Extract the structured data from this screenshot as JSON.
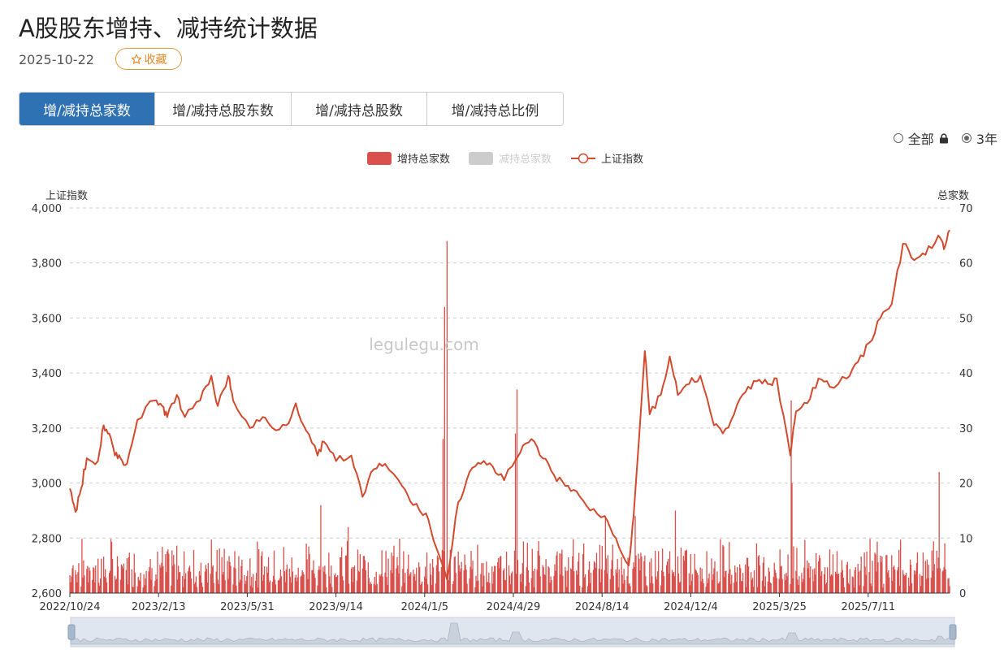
{
  "header": {
    "title": "A股股东增持、减持统计数据",
    "date": "2025-10-22",
    "favorite_label": "收藏"
  },
  "tabs": [
    {
      "label": "增/减持总家数",
      "active": true
    },
    {
      "label": "增/减持总股东数",
      "active": false
    },
    {
      "label": "增/减持总股数",
      "active": false
    },
    {
      "label": "增/减持总比例",
      "active": false
    }
  ],
  "range": {
    "all_label": "全部",
    "three_year_label": "3年",
    "selected": "3年"
  },
  "watermark": "legulegu.com",
  "colors": {
    "increase": "#d9504c",
    "decrease": "#cccccc",
    "index": "#d24a2e",
    "tab_active": "#2f72b4"
  },
  "chart_data": {
    "type": "bar+line",
    "legend": [
      {
        "name": "增持总家数",
        "color": "#d9504c",
        "enabled": true
      },
      {
        "name": "减持总家数",
        "color": "#cccccc",
        "enabled": false
      },
      {
        "name": "上证指数",
        "color": "#d24a2e",
        "enabled": true
      }
    ],
    "legend_position": "top-center",
    "left_axis": {
      "title": "上证指数",
      "range": [
        2600,
        4000
      ],
      "ticks": [
        "2,600",
        "2,800",
        "3,000",
        "3,200",
        "3,400",
        "3,600",
        "3,800",
        "4,000"
      ]
    },
    "right_axis": {
      "title": "总家数",
      "range": [
        0,
        70
      ],
      "ticks": [
        "0",
        "10",
        "20",
        "30",
        "40",
        "50",
        "60",
        "70"
      ]
    },
    "x_range": [
      "2022-10-24",
      "2025-10-22"
    ],
    "x_ticks": [
      "2022/10/24",
      "2023/2/13",
      "2023/5/31",
      "2023/9/14",
      "2024/1/5",
      "2024/4/29",
      "2024/8/14",
      "2024/12/4",
      "2025/3/25",
      "2025/7/11"
    ],
    "grid": "horizontal-dashed",
    "index_series": {
      "name": "上证指数",
      "points": [
        [
          "2022-10-24",
          2980
        ],
        [
          "2022-10-31",
          2895
        ],
        [
          "2022-11-07",
          2980
        ],
        [
          "2022-11-14",
          3090
        ],
        [
          "2022-11-28",
          3080
        ],
        [
          "2022-12-05",
          3210
        ],
        [
          "2022-12-12",
          3180
        ],
        [
          "2022-12-19",
          3100
        ],
        [
          "2022-12-26",
          3090
        ],
        [
          "2023-01-03",
          3070
        ],
        [
          "2023-01-16",
          3230
        ],
        [
          "2023-02-06",
          3300
        ],
        [
          "2023-02-16",
          3280
        ],
        [
          "2023-02-22",
          3240
        ],
        [
          "2023-03-06",
          3320
        ],
        [
          "2023-03-16",
          3240
        ],
        [
          "2023-04-04",
          3300
        ],
        [
          "2023-04-18",
          3390
        ],
        [
          "2023-04-26",
          3280
        ],
        [
          "2023-05-09",
          3390
        ],
        [
          "2023-05-15",
          3300
        ],
        [
          "2023-06-05",
          3200
        ],
        [
          "2023-06-21",
          3240
        ],
        [
          "2023-07-03",
          3200
        ],
        [
          "2023-07-20",
          3210
        ],
        [
          "2023-08-01",
          3290
        ],
        [
          "2023-08-14",
          3190
        ],
        [
          "2023-08-28",
          3100
        ],
        [
          "2023-09-05",
          3150
        ],
        [
          "2023-09-20",
          3080
        ],
        [
          "2023-10-09",
          3100
        ],
        [
          "2023-10-23",
          2950
        ],
        [
          "2023-11-06",
          3050
        ],
        [
          "2023-11-20",
          3070
        ],
        [
          "2023-12-11",
          2990
        ],
        [
          "2023-12-25",
          2920
        ],
        [
          "2024-01-10",
          2890
        ],
        [
          "2024-01-22",
          2770
        ],
        [
          "2024-02-05",
          2650
        ],
        [
          "2024-02-19",
          2930
        ],
        [
          "2024-03-04",
          3040
        ],
        [
          "2024-03-18",
          3070
        ],
        [
          "2024-04-02",
          3060
        ],
        [
          "2024-04-16",
          3010
        ],
        [
          "2024-05-06",
          3110
        ],
        [
          "2024-05-20",
          3160
        ],
        [
          "2024-06-03",
          3090
        ],
        [
          "2024-06-17",
          3030
        ],
        [
          "2024-07-01",
          2990
        ],
        [
          "2024-07-15",
          2970
        ],
        [
          "2024-08-01",
          2900
        ],
        [
          "2024-08-19",
          2880
        ],
        [
          "2024-09-02",
          2800
        ],
        [
          "2024-09-18",
          2700
        ],
        [
          "2024-09-24",
          2880
        ],
        [
          "2024-10-08",
          3480
        ],
        [
          "2024-10-14",
          3250
        ],
        [
          "2024-10-28",
          3320
        ],
        [
          "2024-11-08",
          3460
        ],
        [
          "2024-11-18",
          3320
        ],
        [
          "2024-12-02",
          3360
        ],
        [
          "2024-12-16",
          3390
        ],
        [
          "2025-01-02",
          3210
        ],
        [
          "2025-01-13",
          3180
        ],
        [
          "2025-01-27",
          3250
        ],
        [
          "2025-02-10",
          3330
        ],
        [
          "2025-02-24",
          3370
        ],
        [
          "2025-03-10",
          3360
        ],
        [
          "2025-03-21",
          3380
        ],
        [
          "2025-04-07",
          3100
        ],
        [
          "2025-04-14",
          3260
        ],
        [
          "2025-04-28",
          3290
        ],
        [
          "2025-05-12",
          3380
        ],
        [
          "2025-05-26",
          3350
        ],
        [
          "2025-06-16",
          3380
        ],
        [
          "2025-06-30",
          3440
        ],
        [
          "2025-07-14",
          3510
        ],
        [
          "2025-07-28",
          3600
        ],
        [
          "2025-08-11",
          3650
        ],
        [
          "2025-08-25",
          3870
        ],
        [
          "2025-09-08",
          3810
        ],
        [
          "2025-09-22",
          3830
        ],
        [
          "2025-10-08",
          3900
        ],
        [
          "2025-10-15",
          3850
        ],
        [
          "2025-10-22",
          3920
        ]
      ]
    },
    "increase_series": {
      "name": "增持总家数",
      "note": "daily bars, mostly 0-10; notable peaks",
      "peaks": [
        [
          "2024-02-05",
          64
        ],
        [
          "2024-02-02",
          52
        ],
        [
          "2024-01-31",
          28
        ],
        [
          "2024-05-02",
          37
        ],
        [
          "2024-04-30",
          29
        ],
        [
          "2025-04-08",
          35
        ],
        [
          "2025-04-09",
          20
        ],
        [
          "2025-10-09",
          22
        ],
        [
          "2023-09-01",
          16
        ],
        [
          "2024-09-26",
          14
        ],
        [
          "2024-11-15",
          15
        ],
        [
          "2024-08-20",
          14
        ],
        [
          "2023-10-05",
          12
        ]
      ],
      "typical_range": [
        0,
        10
      ]
    }
  }
}
